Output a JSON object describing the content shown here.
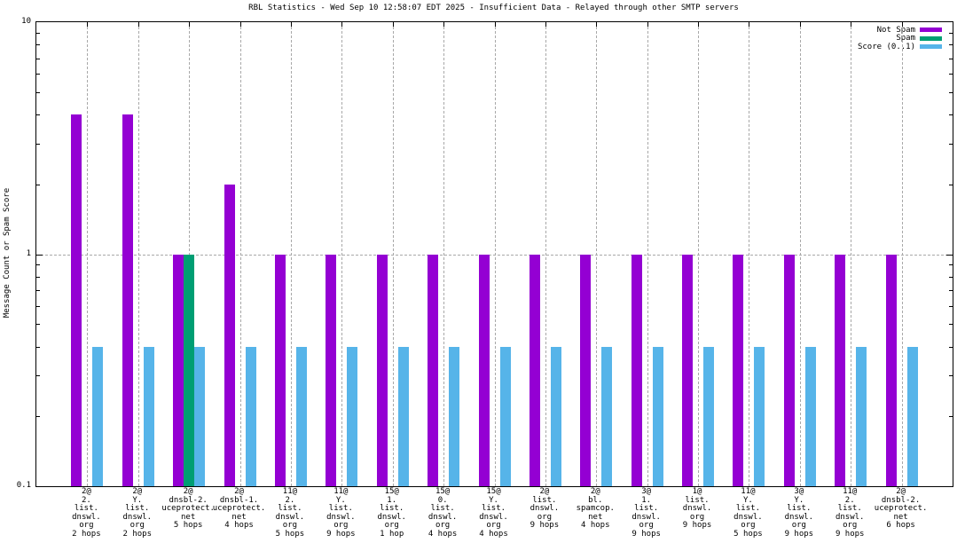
{
  "title": "RBL Statistics - Wed Sep 10 12:58:07 EDT 2025 - Insufficient Data - Relayed through other SMTP servers",
  "y_axis": {
    "label": "Message Count or Spam Score",
    "ticks": [
      {
        "label": "10",
        "value": 10
      },
      {
        "label": "1",
        "value": 1
      },
      {
        "label": "0.1",
        "value": 0.1
      }
    ]
  },
  "colors": {
    "not_spam": "#9400d3",
    "spam": "#009e73",
    "score": "#56b4e9"
  },
  "chart_data": {
    "type": "bar",
    "scale": "log",
    "ylim": [
      0.1,
      10
    ],
    "grid": true,
    "legend_position": "top-right",
    "title": "RBL Statistics - Wed Sep 10 12:58:07 EDT 2025 - Insufficient Data - Relayed through other SMTP servers",
    "xlabel": "",
    "ylabel": "Message Count or Spam Score",
    "categories": [
      [
        "2@",
        "2.",
        "list.",
        "dnswl.",
        "org",
        "2 hops"
      ],
      [
        "2@",
        "Y.",
        "list.",
        "dnswl.",
        "org",
        "2 hops"
      ],
      [
        "2@",
        "dnsbl-2.",
        "uceprotect.",
        "net",
        "5 hops"
      ],
      [
        "2@",
        "dnsbl-1.",
        "uceprotect.",
        "net",
        "4 hops"
      ],
      [
        "11@",
        "2.",
        "list.",
        "dnswl.",
        "org",
        "5 hops"
      ],
      [
        "11@",
        "Y.",
        "list.",
        "dnswl.",
        "org",
        "9 hops"
      ],
      [
        "15@",
        "1.",
        "list.",
        "dnswl.",
        "org",
        "1 hop"
      ],
      [
        "15@",
        "0.",
        "list.",
        "dnswl.",
        "org",
        "4 hops"
      ],
      [
        "15@",
        "Y.",
        "list.",
        "dnswl.",
        "org",
        "4 hops"
      ],
      [
        "2@",
        "list.",
        "dnswl.",
        "org",
        "9 hops"
      ],
      [
        "2@",
        "bl.",
        "spamcop.",
        "net",
        "4 hops"
      ],
      [
        "3@",
        "1.",
        "list.",
        "dnswl.",
        "org",
        "9 hops"
      ],
      [
        "1@",
        "list.",
        "dnswl.",
        "org",
        "9 hops"
      ],
      [
        "11@",
        "Y.",
        "list.",
        "dnswl.",
        "org",
        "5 hops"
      ],
      [
        "3@",
        "Y.",
        "list.",
        "dnswl.",
        "org",
        "9 hops"
      ],
      [
        "11@",
        "2.",
        "list.",
        "dnswl.",
        "org",
        "9 hops"
      ],
      [
        "2@",
        "dnsbl-2.",
        "uceprotect.",
        "net",
        "6 hops"
      ]
    ],
    "series": [
      {
        "name": "Not Spam",
        "color": "#9400d3",
        "values": [
          4,
          4,
          1,
          2,
          1,
          1,
          1,
          1,
          1,
          1,
          1,
          1,
          1,
          1,
          1,
          1,
          1
        ]
      },
      {
        "name": "Spam",
        "color": "#009e73",
        "values": [
          0,
          0,
          1,
          0,
          0,
          0,
          0,
          0,
          0,
          0,
          0,
          0,
          0,
          0,
          0,
          0,
          0
        ]
      },
      {
        "name": "Score (0..1)",
        "color": "#56b4e9",
        "values": [
          0.4,
          0.4,
          0.4,
          0.4,
          0.4,
          0.4,
          0.4,
          0.4,
          0.4,
          0.4,
          0.4,
          0.4,
          0.4,
          0.4,
          0.4,
          0.4,
          0.4
        ]
      }
    ]
  }
}
